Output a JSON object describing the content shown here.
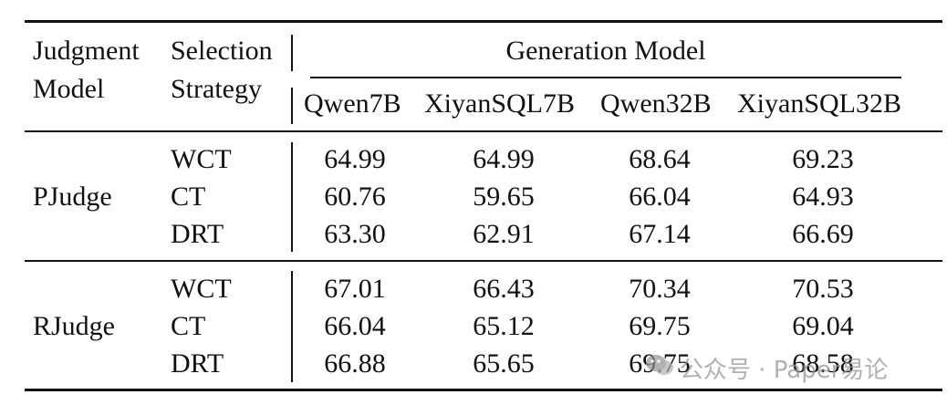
{
  "header": {
    "judgment_model": [
      "Judgment",
      "Model"
    ],
    "selection_strategy": [
      "Selection",
      "Strategy"
    ],
    "generation_model": "Generation Model",
    "columns": [
      "Qwen7B",
      "XiyanSQL7B",
      "Qwen32B",
      "XiyanSQL32B"
    ]
  },
  "groups": [
    {
      "model": "PJudge",
      "rows": [
        {
          "strategy": "WCT",
          "values": [
            "64.99",
            "64.99",
            "68.64",
            "69.23"
          ]
        },
        {
          "strategy": "CT",
          "values": [
            "60.76",
            "59.65",
            "66.04",
            "64.93"
          ]
        },
        {
          "strategy": "DRT",
          "values": [
            "63.30",
            "62.91",
            "67.14",
            "66.69"
          ]
        }
      ]
    },
    {
      "model": "RJudge",
      "rows": [
        {
          "strategy": "WCT",
          "values": [
            "67.01",
            "66.43",
            "70.34",
            "70.53"
          ]
        },
        {
          "strategy": "CT",
          "values": [
            "66.04",
            "65.12",
            "69.75",
            "69.04"
          ]
        },
        {
          "strategy": "DRT",
          "values": [
            "66.88",
            "65.65",
            "69.75",
            "68.58"
          ]
        }
      ]
    }
  ],
  "watermark": {
    "text": "公众号 · Paper易论",
    "icon": "wechat-icon",
    "color": "#969696"
  }
}
